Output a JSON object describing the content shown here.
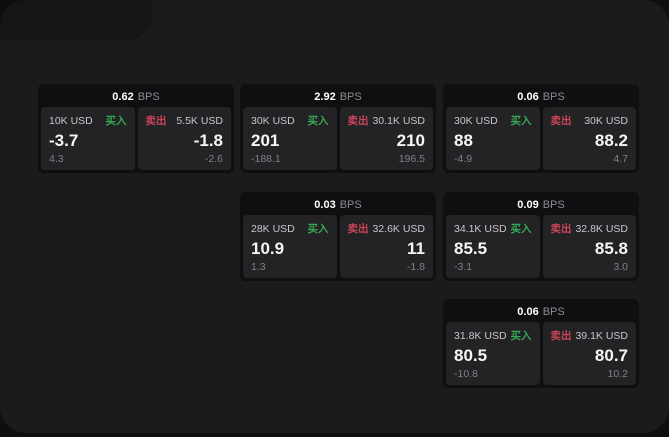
{
  "colors": {
    "background_outer": "#0e0e0f",
    "panel": "#1b1b1d",
    "card": "#0f0f11",
    "tile": "#232326",
    "buy_green": "#35a854",
    "sell_red": "#c94458",
    "value_white": "#f5f5f7",
    "label_gray": "#c7c7cb",
    "delta_gray": "#818186"
  },
  "labels": {
    "buy": "买入",
    "sell": "卖出",
    "bps_unit": "BPS"
  },
  "cards": [
    {
      "bps": "0.62",
      "buy": {
        "size": "10K USD",
        "value": "-3.7",
        "delta": "4.3"
      },
      "sell": {
        "size": "5.5K USD",
        "value": "-1.8",
        "delta": "-2.6"
      }
    },
    {
      "bps": "2.92",
      "buy": {
        "size": "30K USD",
        "value": "201",
        "delta": "-188.1"
      },
      "sell": {
        "size": "30.1K USD",
        "value": "210",
        "delta": "196.5"
      }
    },
    {
      "bps": "0.06",
      "buy": {
        "size": "30K USD",
        "value": "88",
        "delta": "-4.9"
      },
      "sell": {
        "size": "30K USD",
        "value": "88.2",
        "delta": "4.7"
      }
    },
    {
      "bps": "0.03",
      "buy": {
        "size": "28K USD",
        "value": "10.9",
        "delta": "1.3"
      },
      "sell": {
        "size": "32.6K USD",
        "value": "11",
        "delta": "-1.8"
      }
    },
    {
      "bps": "0.09",
      "buy": {
        "size": "34.1K USD",
        "value": "85.5",
        "delta": "-3.1"
      },
      "sell": {
        "size": "32.8K USD",
        "value": "85.8",
        "delta": "3.0"
      }
    },
    {
      "bps": "0.06",
      "buy": {
        "size": "31.8K USD",
        "value": "80.5",
        "delta": "-10.8"
      },
      "sell": {
        "size": "39.1K USD",
        "value": "80.7",
        "delta": "10.2"
      }
    }
  ]
}
